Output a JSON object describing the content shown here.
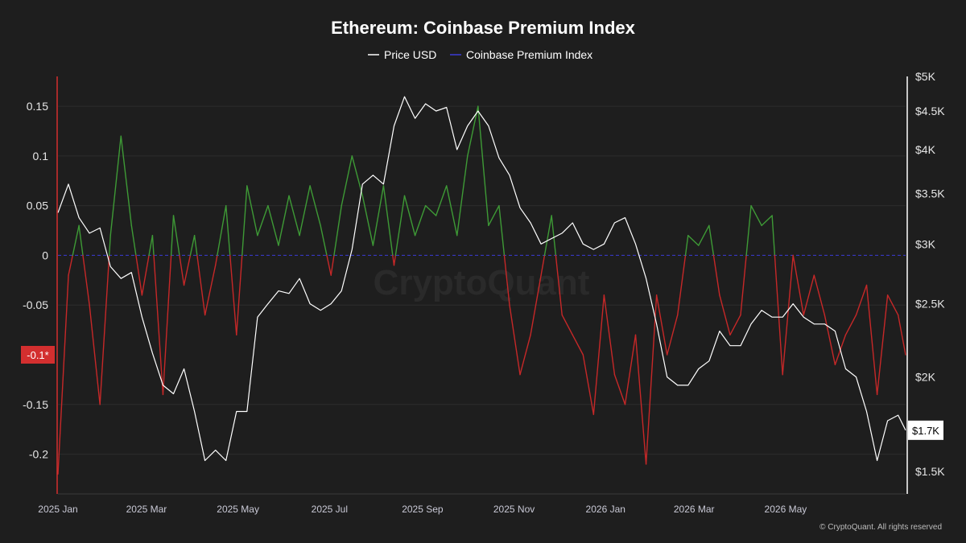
{
  "chart_data": {
    "type": "line",
    "title": "Ethereum: Coinbase Premium Index",
    "legend": {
      "placement": "top-center",
      "entries": [
        {
          "label": "Price USD",
          "color": "#ffffff"
        },
        {
          "label": "Coinbase Premium Index",
          "color": "#3b3bd6"
        }
      ]
    },
    "x_axis": {
      "type": "date",
      "range": [
        "2025-01-01",
        "2026-07-20"
      ],
      "ticks": [
        {
          "date": "2025-01-01",
          "label": "2025 Jan"
        },
        {
          "date": "2025-03-01",
          "label": "2025 Mar"
        },
        {
          "date": "2025-05-01",
          "label": "2025 May"
        },
        {
          "date": "2025-07-01",
          "label": "2025 Jul"
        },
        {
          "date": "2025-09-01",
          "label": "2025 Sep"
        },
        {
          "date": "2025-11-01",
          "label": "2025 Nov"
        },
        {
          "date": "2026-01-01",
          "label": "2026 Jan"
        },
        {
          "date": "2026-03-01",
          "label": "2026 Mar"
        },
        {
          "date": "2026-05-01",
          "label": "2026 May"
        }
      ]
    },
    "y_left": {
      "range": [
        -0.24,
        0.18
      ],
      "ticks": [
        {
          "value": 0.15,
          "label": "0.15"
        },
        {
          "value": 0.1,
          "label": "0.1"
        },
        {
          "value": 0.05,
          "label": "0.05"
        },
        {
          "value": 0,
          "label": "0"
        },
        {
          "value": -0.05,
          "label": "-0.05"
        },
        {
          "value": -0.15,
          "label": "-0.15"
        },
        {
          "value": -0.2,
          "label": "-0.2"
        }
      ],
      "current_badge": {
        "value": -0.1,
        "label": "-0.1*",
        "color": "#d32f2f"
      }
    },
    "y_right": {
      "scale": "log",
      "range": [
        1400,
        5000
      ],
      "ticks": [
        {
          "value": 5000,
          "label": "$5K"
        },
        {
          "value": 4500,
          "label": "$4.5K"
        },
        {
          "value": 4000,
          "label": "$4K"
        },
        {
          "value": 3500,
          "label": "$3.5K"
        },
        {
          "value": 3000,
          "label": "$3K"
        },
        {
          "value": 2500,
          "label": "$2.5K"
        },
        {
          "value": 2000,
          "label": "$2K"
        },
        {
          "value": 1500,
          "label": "$1.5K"
        }
      ],
      "current_badge": {
        "value": 1700,
        "label": "$1.7K"
      }
    },
    "grid": true,
    "colors": {
      "positive": "#3e9a36",
      "negative": "#c62828",
      "price": "#ffffff",
      "zero_line": "#3b3bd6"
    },
    "series": [
      {
        "name": "Price USD",
        "axis": "right",
        "x": [
          "2025-01-01",
          "2025-01-08",
          "2025-01-15",
          "2025-01-22",
          "2025-01-29",
          "2025-02-05",
          "2025-02-12",
          "2025-02-19",
          "2025-02-26",
          "2025-03-05",
          "2025-03-12",
          "2025-03-19",
          "2025-03-26",
          "2025-04-02",
          "2025-04-09",
          "2025-04-16",
          "2025-04-23",
          "2025-04-30",
          "2025-05-07",
          "2025-05-14",
          "2025-05-21",
          "2025-05-28",
          "2025-06-04",
          "2025-06-11",
          "2025-06-18",
          "2025-06-25",
          "2025-07-02",
          "2025-07-09",
          "2025-07-16",
          "2025-07-23",
          "2025-07-30",
          "2025-08-06",
          "2025-08-13",
          "2025-08-20",
          "2025-08-27",
          "2025-09-03",
          "2025-09-10",
          "2025-09-17",
          "2025-09-24",
          "2025-10-01",
          "2025-10-08",
          "2025-10-15",
          "2025-10-22",
          "2025-10-29",
          "2025-11-05",
          "2025-11-12",
          "2025-11-19",
          "2025-11-26",
          "2025-12-03",
          "2025-12-10",
          "2025-12-17",
          "2025-12-24",
          "2025-12-31",
          "2026-01-07",
          "2026-01-14",
          "2026-01-21",
          "2026-01-28",
          "2026-02-04",
          "2026-02-11",
          "2026-02-18",
          "2026-02-25",
          "2026-03-04",
          "2026-03-11",
          "2026-03-18",
          "2026-03-25",
          "2026-04-01",
          "2026-04-08",
          "2026-04-15",
          "2026-04-22",
          "2026-04-29",
          "2026-05-06",
          "2026-05-13",
          "2026-05-20",
          "2026-05-27",
          "2026-06-03",
          "2026-06-10",
          "2026-06-17",
          "2026-06-24",
          "2026-07-01",
          "2026-07-08",
          "2026-07-15",
          "2026-07-20"
        ],
        "values": [
          3300,
          3600,
          3250,
          3100,
          3150,
          2800,
          2700,
          2750,
          2400,
          2150,
          1950,
          1900,
          2050,
          1800,
          1550,
          1600,
          1550,
          1800,
          1800,
          2400,
          2500,
          2600,
          2580,
          2700,
          2500,
          2450,
          2500,
          2600,
          2950,
          3600,
          3700,
          3600,
          4300,
          4700,
          4400,
          4600,
          4500,
          4550,
          4000,
          4300,
          4500,
          4300,
          3900,
          3700,
          3350,
          3200,
          3000,
          3050,
          3100,
          3200,
          3000,
          2950,
          3000,
          3200,
          3250,
          3000,
          2700,
          2350,
          2000,
          1950,
          1950,
          2050,
          2100,
          2300,
          2200,
          2200,
          2350,
          2450,
          2400,
          2400,
          2500,
          2400,
          2350,
          2350,
          2300,
          2050,
          2000,
          1800,
          1550,
          1750,
          1780,
          1700
        ]
      },
      {
        "name": "Coinbase Premium Index",
        "axis": "left",
        "x": [
          "2025-01-01",
          "2025-01-08",
          "2025-01-15",
          "2025-01-22",
          "2025-01-29",
          "2025-02-05",
          "2025-02-12",
          "2025-02-19",
          "2025-02-26",
          "2025-03-05",
          "2025-03-12",
          "2025-03-19",
          "2025-03-26",
          "2025-04-02",
          "2025-04-09",
          "2025-04-16",
          "2025-04-23",
          "2025-04-30",
          "2025-05-07",
          "2025-05-14",
          "2025-05-21",
          "2025-05-28",
          "2025-06-04",
          "2025-06-11",
          "2025-06-18",
          "2025-06-25",
          "2025-07-02",
          "2025-07-09",
          "2025-07-16",
          "2025-07-23",
          "2025-07-30",
          "2025-08-06",
          "2025-08-13",
          "2025-08-20",
          "2025-08-27",
          "2025-09-03",
          "2025-09-10",
          "2025-09-17",
          "2025-09-24",
          "2025-10-01",
          "2025-10-08",
          "2025-10-15",
          "2025-10-22",
          "2025-10-29",
          "2025-11-05",
          "2025-11-12",
          "2025-11-19",
          "2025-11-26",
          "2025-12-03",
          "2025-12-10",
          "2025-12-17",
          "2025-12-24",
          "2025-12-31",
          "2026-01-07",
          "2026-01-14",
          "2026-01-21",
          "2026-01-28",
          "2026-02-04",
          "2026-02-11",
          "2026-02-18",
          "2026-02-25",
          "2026-03-04",
          "2026-03-11",
          "2026-03-18",
          "2026-03-25",
          "2026-04-01",
          "2026-04-08",
          "2026-04-15",
          "2026-04-22",
          "2026-04-29",
          "2026-05-06",
          "2026-05-13",
          "2026-05-20",
          "2026-05-27",
          "2026-06-03",
          "2026-06-10",
          "2026-06-17",
          "2026-06-24",
          "2026-07-01",
          "2026-07-08",
          "2026-07-15",
          "2026-07-20"
        ],
        "values": [
          -0.22,
          -0.02,
          0.03,
          -0.05,
          -0.15,
          0.02,
          0.12,
          0.03,
          -0.04,
          0.02,
          -0.14,
          0.04,
          -0.03,
          0.02,
          -0.06,
          -0.01,
          0.05,
          -0.08,
          0.07,
          0.02,
          0.05,
          0.01,
          0.06,
          0.02,
          0.07,
          0.03,
          -0.02,
          0.05,
          0.1,
          0.06,
          0.01,
          0.07,
          -0.01,
          0.06,
          0.02,
          0.05,
          0.04,
          0.07,
          0.02,
          0.1,
          0.15,
          0.03,
          0.05,
          -0.05,
          -0.12,
          -0.08,
          -0.02,
          0.04,
          -0.06,
          -0.08,
          -0.1,
          -0.16,
          -0.04,
          -0.12,
          -0.15,
          -0.08,
          -0.21,
          -0.04,
          -0.1,
          -0.06,
          0.02,
          0.01,
          0.03,
          -0.04,
          -0.08,
          -0.06,
          0.05,
          0.03,
          0.04,
          -0.12,
          0.0,
          -0.06,
          -0.02,
          -0.06,
          -0.11,
          -0.08,
          -0.06,
          -0.03,
          -0.14,
          -0.04,
          -0.06,
          -0.1
        ]
      }
    ],
    "watermark": "CryptoQuant",
    "footer": "© CryptoQuant. All rights reserved"
  }
}
